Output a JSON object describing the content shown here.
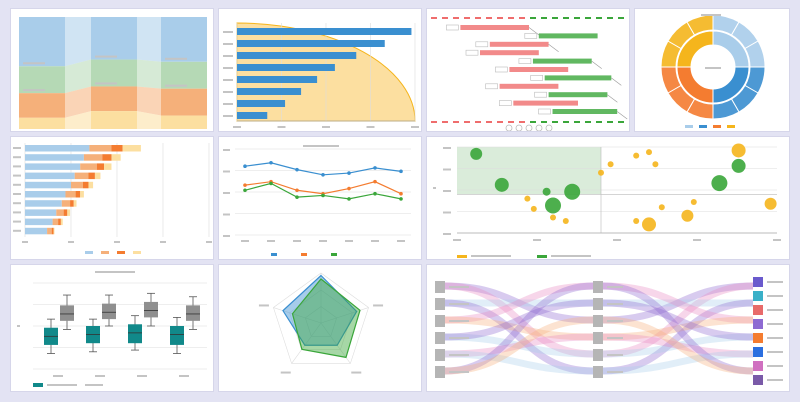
{
  "colors": {
    "blue": "#3a8fd0",
    "lightblue": "#a9cdea",
    "orange": "#f47c30",
    "yellow": "#f5b51c",
    "green": "#3aa63a",
    "teal": "#11898a",
    "gray": "#8f8f8f",
    "red": "#ef6d6d",
    "peach": "#f5b07a",
    "purple": "#8e6ad2",
    "pink": "#e88ac4",
    "lightyellow": "#fcdfa0",
    "lightgreen": "#b5d9b5",
    "grid": "#dddddd"
  },
  "chart_data": [
    {
      "type": "area",
      "subtype": "percent-stacked-columns-with-flow",
      "categories": [
        "",
        "",
        ""
      ],
      "series": [
        {
          "values": [
            44,
            38,
            40
          ]
        },
        {
          "values": [
            24,
            24,
            24
          ]
        },
        {
          "values": [
            22,
            22,
            24
          ]
        },
        {
          "values": [
            10,
            16,
            12
          ]
        }
      ],
      "ylim": [
        0,
        100
      ]
    },
    {
      "type": "bar",
      "orientation": "horizontal",
      "categories": [
        "",
        "",
        "",
        "",
        "",
        "",
        "",
        ""
      ],
      "values": [
        98,
        83,
        67,
        55,
        45,
        36,
        27,
        17
      ],
      "xlim": [
        0,
        100
      ],
      "overlay": "quarter-circle-area"
    },
    {
      "type": "diagram",
      "subtype": "gantt",
      "rows": [
        {
          "start": 15,
          "end": 50,
          "color": "red"
        },
        {
          "start": 55,
          "end": 85,
          "color": "green"
        },
        {
          "start": 30,
          "end": 60,
          "color": "red"
        },
        {
          "start": 25,
          "end": 55,
          "color": "red"
        },
        {
          "start": 52,
          "end": 82,
          "color": "green"
        },
        {
          "start": 40,
          "end": 70,
          "color": "red"
        },
        {
          "start": 58,
          "end": 92,
          "color": "green"
        },
        {
          "start": 35,
          "end": 65,
          "color": "red"
        },
        {
          "start": 60,
          "end": 90,
          "color": "green"
        },
        {
          "start": 42,
          "end": 75,
          "color": "red"
        },
        {
          "start": 62,
          "end": 95,
          "color": "green"
        }
      ]
    },
    {
      "type": "pie",
      "subtype": "sunburst",
      "values": [
        25,
        25,
        25,
        25
      ],
      "legend": "bottom"
    },
    {
      "type": "bar",
      "orientation": "horizontal",
      "stacked": true,
      "categories": [
        "",
        "",
        "",
        "",
        "",
        "",
        "",
        "",
        "",
        ""
      ],
      "series": [
        {
          "values": [
            70,
            64,
            60,
            54,
            50,
            44,
            40,
            34,
            30,
            24
          ]
        },
        {
          "values": [
            24,
            20,
            18,
            15,
            13,
            11,
            9,
            8,
            6,
            5
          ]
        },
        {
          "values": [
            12,
            10,
            8,
            7,
            6,
            5,
            4,
            4,
            3,
            2
          ]
        },
        {
          "values": [
            20,
            10,
            8,
            6,
            5,
            4,
            3,
            3,
            2,
            1
          ]
        }
      ],
      "xlim": [
        0,
        200
      ],
      "legend": "bottom"
    },
    {
      "type": "line",
      "x": [
        1,
        2,
        3,
        4,
        5,
        6,
        7
      ],
      "series": [
        {
          "values": [
            80,
            84,
            76,
            70,
            72,
            78,
            74
          ]
        },
        {
          "values": [
            58,
            62,
            52,
            48,
            54,
            62,
            48
          ]
        },
        {
          "values": [
            52,
            60,
            44,
            46,
            42,
            48,
            42
          ]
        }
      ],
      "ylim": [
        0,
        100
      ],
      "legend": "bottom"
    },
    {
      "type": "scatter",
      "subtype": "bubble",
      "series": [
        {
          "points": [
            [
              6,
              92,
              6
            ],
            [
              28,
              48,
              4
            ],
            [
              14,
              56,
              7
            ],
            [
              36,
              48,
              8
            ],
            [
              30,
              32,
              8
            ],
            [
              82,
              58,
              8
            ],
            [
              88,
              78,
              7
            ]
          ]
        },
        {
          "points": [
            [
              60,
              94,
              3
            ],
            [
              56,
              90,
              3
            ],
            [
              48,
              80,
              3
            ],
            [
              62,
              80,
              3
            ],
            [
              45,
              70,
              3
            ],
            [
              88,
              96,
              7
            ],
            [
              24,
              28,
              3
            ],
            [
              30,
              18,
              3
            ],
            [
              34,
              14,
              3
            ],
            [
              22,
              40,
              3
            ],
            [
              56,
              14,
              3
            ],
            [
              60,
              10,
              7
            ],
            [
              64,
              30,
              3
            ],
            [
              72,
              20,
              6
            ],
            [
              74,
              36,
              3
            ],
            [
              98,
              34,
              6
            ]
          ]
        }
      ],
      "xlim": [
        0,
        100
      ],
      "ylim": [
        0,
        100
      ],
      "legend": "bottom"
    },
    {
      "type": "box",
      "groups": [
        {
          "min": 18,
          "q1": 28,
          "median": 38,
          "q3": 48,
          "max": 58,
          "color": "teal"
        },
        {
          "min": 46,
          "q1": 56,
          "median": 64,
          "q3": 74,
          "max": 86,
          "color": "gray"
        },
        {
          "min": 20,
          "q1": 30,
          "median": 40,
          "q3": 50,
          "max": 58,
          "color": "teal"
        },
        {
          "min": 50,
          "q1": 58,
          "median": 66,
          "q3": 76,
          "max": 86,
          "color": "gray"
        },
        {
          "min": 22,
          "q1": 30,
          "median": 42,
          "q3": 52,
          "max": 62,
          "color": "teal"
        },
        {
          "min": 50,
          "q1": 60,
          "median": 68,
          "q3": 78,
          "max": 88,
          "color": "gray"
        },
        {
          "min": 18,
          "q1": 28,
          "median": 40,
          "q3": 50,
          "max": 60,
          "color": "teal"
        },
        {
          "min": 46,
          "q1": 56,
          "median": 64,
          "q3": 74,
          "max": 84,
          "color": "gray"
        }
      ],
      "ylim": [
        0,
        100
      ],
      "legend": "bottom"
    },
    {
      "type": "radar",
      "axes": 5,
      "series": [
        {
          "values": [
            0.95,
            0.75,
            0.55,
            0.55,
            0.8
          ]
        },
        {
          "values": [
            0.88,
            0.82,
            0.85,
            0.65,
            0.6
          ]
        }
      ]
    },
    {
      "type": "diagram",
      "subtype": "sankey",
      "columns": 3,
      "flows": [
        {
          "from": 0,
          "to": 2,
          "color": "purple"
        },
        {
          "from": 0,
          "to": 4,
          "color": "pink"
        },
        {
          "from": 1,
          "to": 1,
          "color": "lightblue"
        },
        {
          "from": 1,
          "to": 5,
          "color": "purple"
        },
        {
          "from": 2,
          "to": 0,
          "color": "pink"
        },
        {
          "from": 2,
          "to": 3,
          "color": "peach"
        },
        {
          "from": 3,
          "to": 4,
          "color": "lightblue"
        },
        {
          "from": 3,
          "to": 1,
          "color": "purple"
        },
        {
          "from": 4,
          "to": 3,
          "color": "pink"
        },
        {
          "from": 4,
          "to": 5,
          "color": "lightblue"
        },
        {
          "from": 5,
          "to": 0,
          "color": "purple"
        },
        {
          "from": 5,
          "to": 2,
          "color": "peach"
        }
      ],
      "right_colors": [
        "#6a5acd",
        "#3ab0c8",
        "#e86a6a",
        "#8e6ad2",
        "#f47c30",
        "#2b6fe0",
        "#d070c0",
        "#7a5aa8"
      ]
    }
  ]
}
